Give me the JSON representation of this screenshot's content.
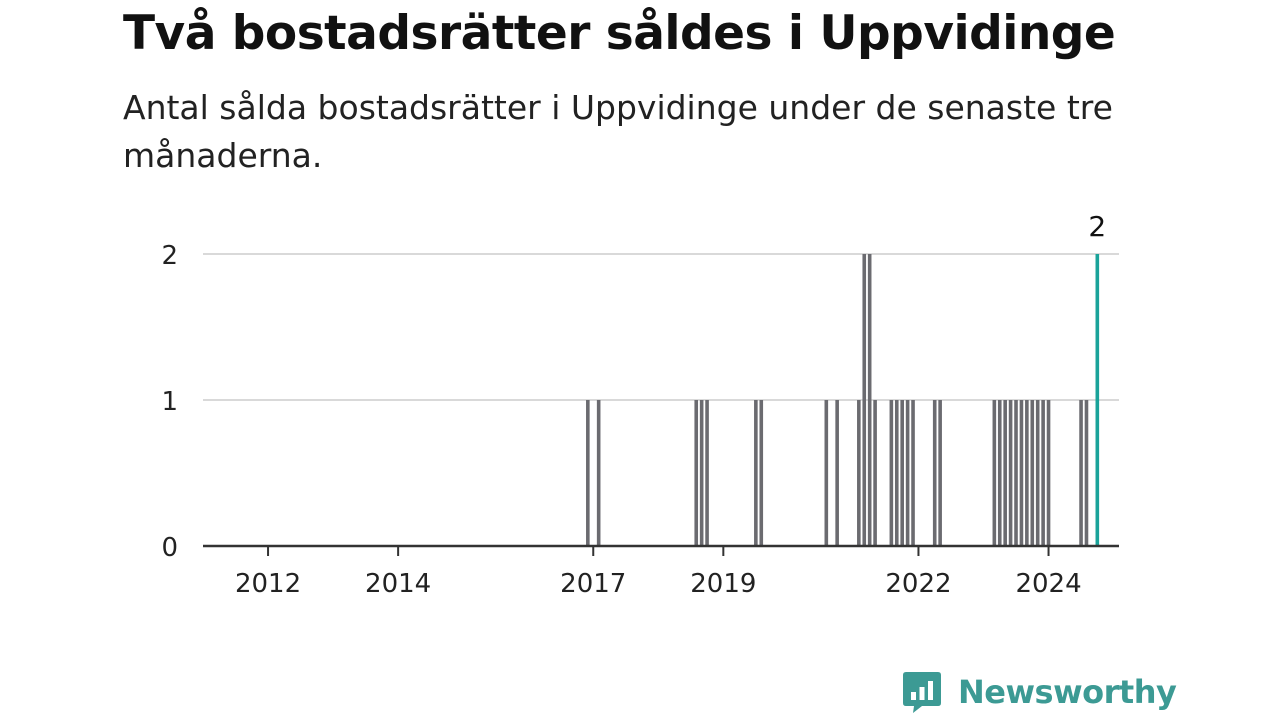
{
  "chart_data": {
    "type": "bar",
    "title": "Två bostadsrätter såldes i Uppvidinge",
    "subtitle": "Antal sålda bostadsrätter i Uppvidinge under de senaste tre månaderna.",
    "xlabel": "",
    "ylabel": "",
    "x_range": [
      "2011-07",
      "2025-08"
    ],
    "ylim": [
      0,
      2
    ],
    "y_ticks": [
      0,
      1,
      2
    ],
    "x_ticks": [
      "2012",
      "2014",
      "2017",
      "2019",
      "2022",
      "2024"
    ],
    "grid": true,
    "values": [
      {
        "month": "2017-06",
        "value": 1
      },
      {
        "month": "2017-08",
        "value": 1
      },
      {
        "month": "2019-02",
        "value": 1
      },
      {
        "month": "2019-03",
        "value": 1
      },
      {
        "month": "2019-04",
        "value": 1
      },
      {
        "month": "2020-01",
        "value": 1
      },
      {
        "month": "2020-02",
        "value": 1
      },
      {
        "month": "2021-02",
        "value": 1
      },
      {
        "month": "2021-04",
        "value": 1
      },
      {
        "month": "2021-08",
        "value": 1
      },
      {
        "month": "2021-09",
        "value": 2
      },
      {
        "month": "2021-10",
        "value": 2
      },
      {
        "month": "2021-11",
        "value": 1
      },
      {
        "month": "2022-02",
        "value": 1
      },
      {
        "month": "2022-03",
        "value": 1
      },
      {
        "month": "2022-04",
        "value": 1
      },
      {
        "month": "2022-05",
        "value": 1
      },
      {
        "month": "2022-06",
        "value": 1
      },
      {
        "month": "2022-10",
        "value": 1
      },
      {
        "month": "2022-11",
        "value": 1
      },
      {
        "month": "2023-09",
        "value": 1
      },
      {
        "month": "2023-10",
        "value": 1
      },
      {
        "month": "2023-11",
        "value": 1
      },
      {
        "month": "2023-12",
        "value": 1
      },
      {
        "month": "2024-01",
        "value": 1
      },
      {
        "month": "2024-02",
        "value": 1
      },
      {
        "month": "2024-03",
        "value": 1
      },
      {
        "month": "2024-04",
        "value": 1
      },
      {
        "month": "2024-05",
        "value": 1
      },
      {
        "month": "2024-06",
        "value": 1
      },
      {
        "month": "2024-07",
        "value": 1
      },
      {
        "month": "2025-01",
        "value": 1
      },
      {
        "month": "2025-02",
        "value": 1
      },
      {
        "month": "2025-04",
        "value": 2
      }
    ],
    "highlight": {
      "month": "2025-04",
      "value": 2,
      "label": "2"
    },
    "colors": {
      "bar": "#6b6b70",
      "highlight": "#1aa39a",
      "grid": "#d9d9d9",
      "axis": "#333333"
    }
  },
  "brand": {
    "name": "Newsworthy",
    "color": "#3c9a94"
  }
}
